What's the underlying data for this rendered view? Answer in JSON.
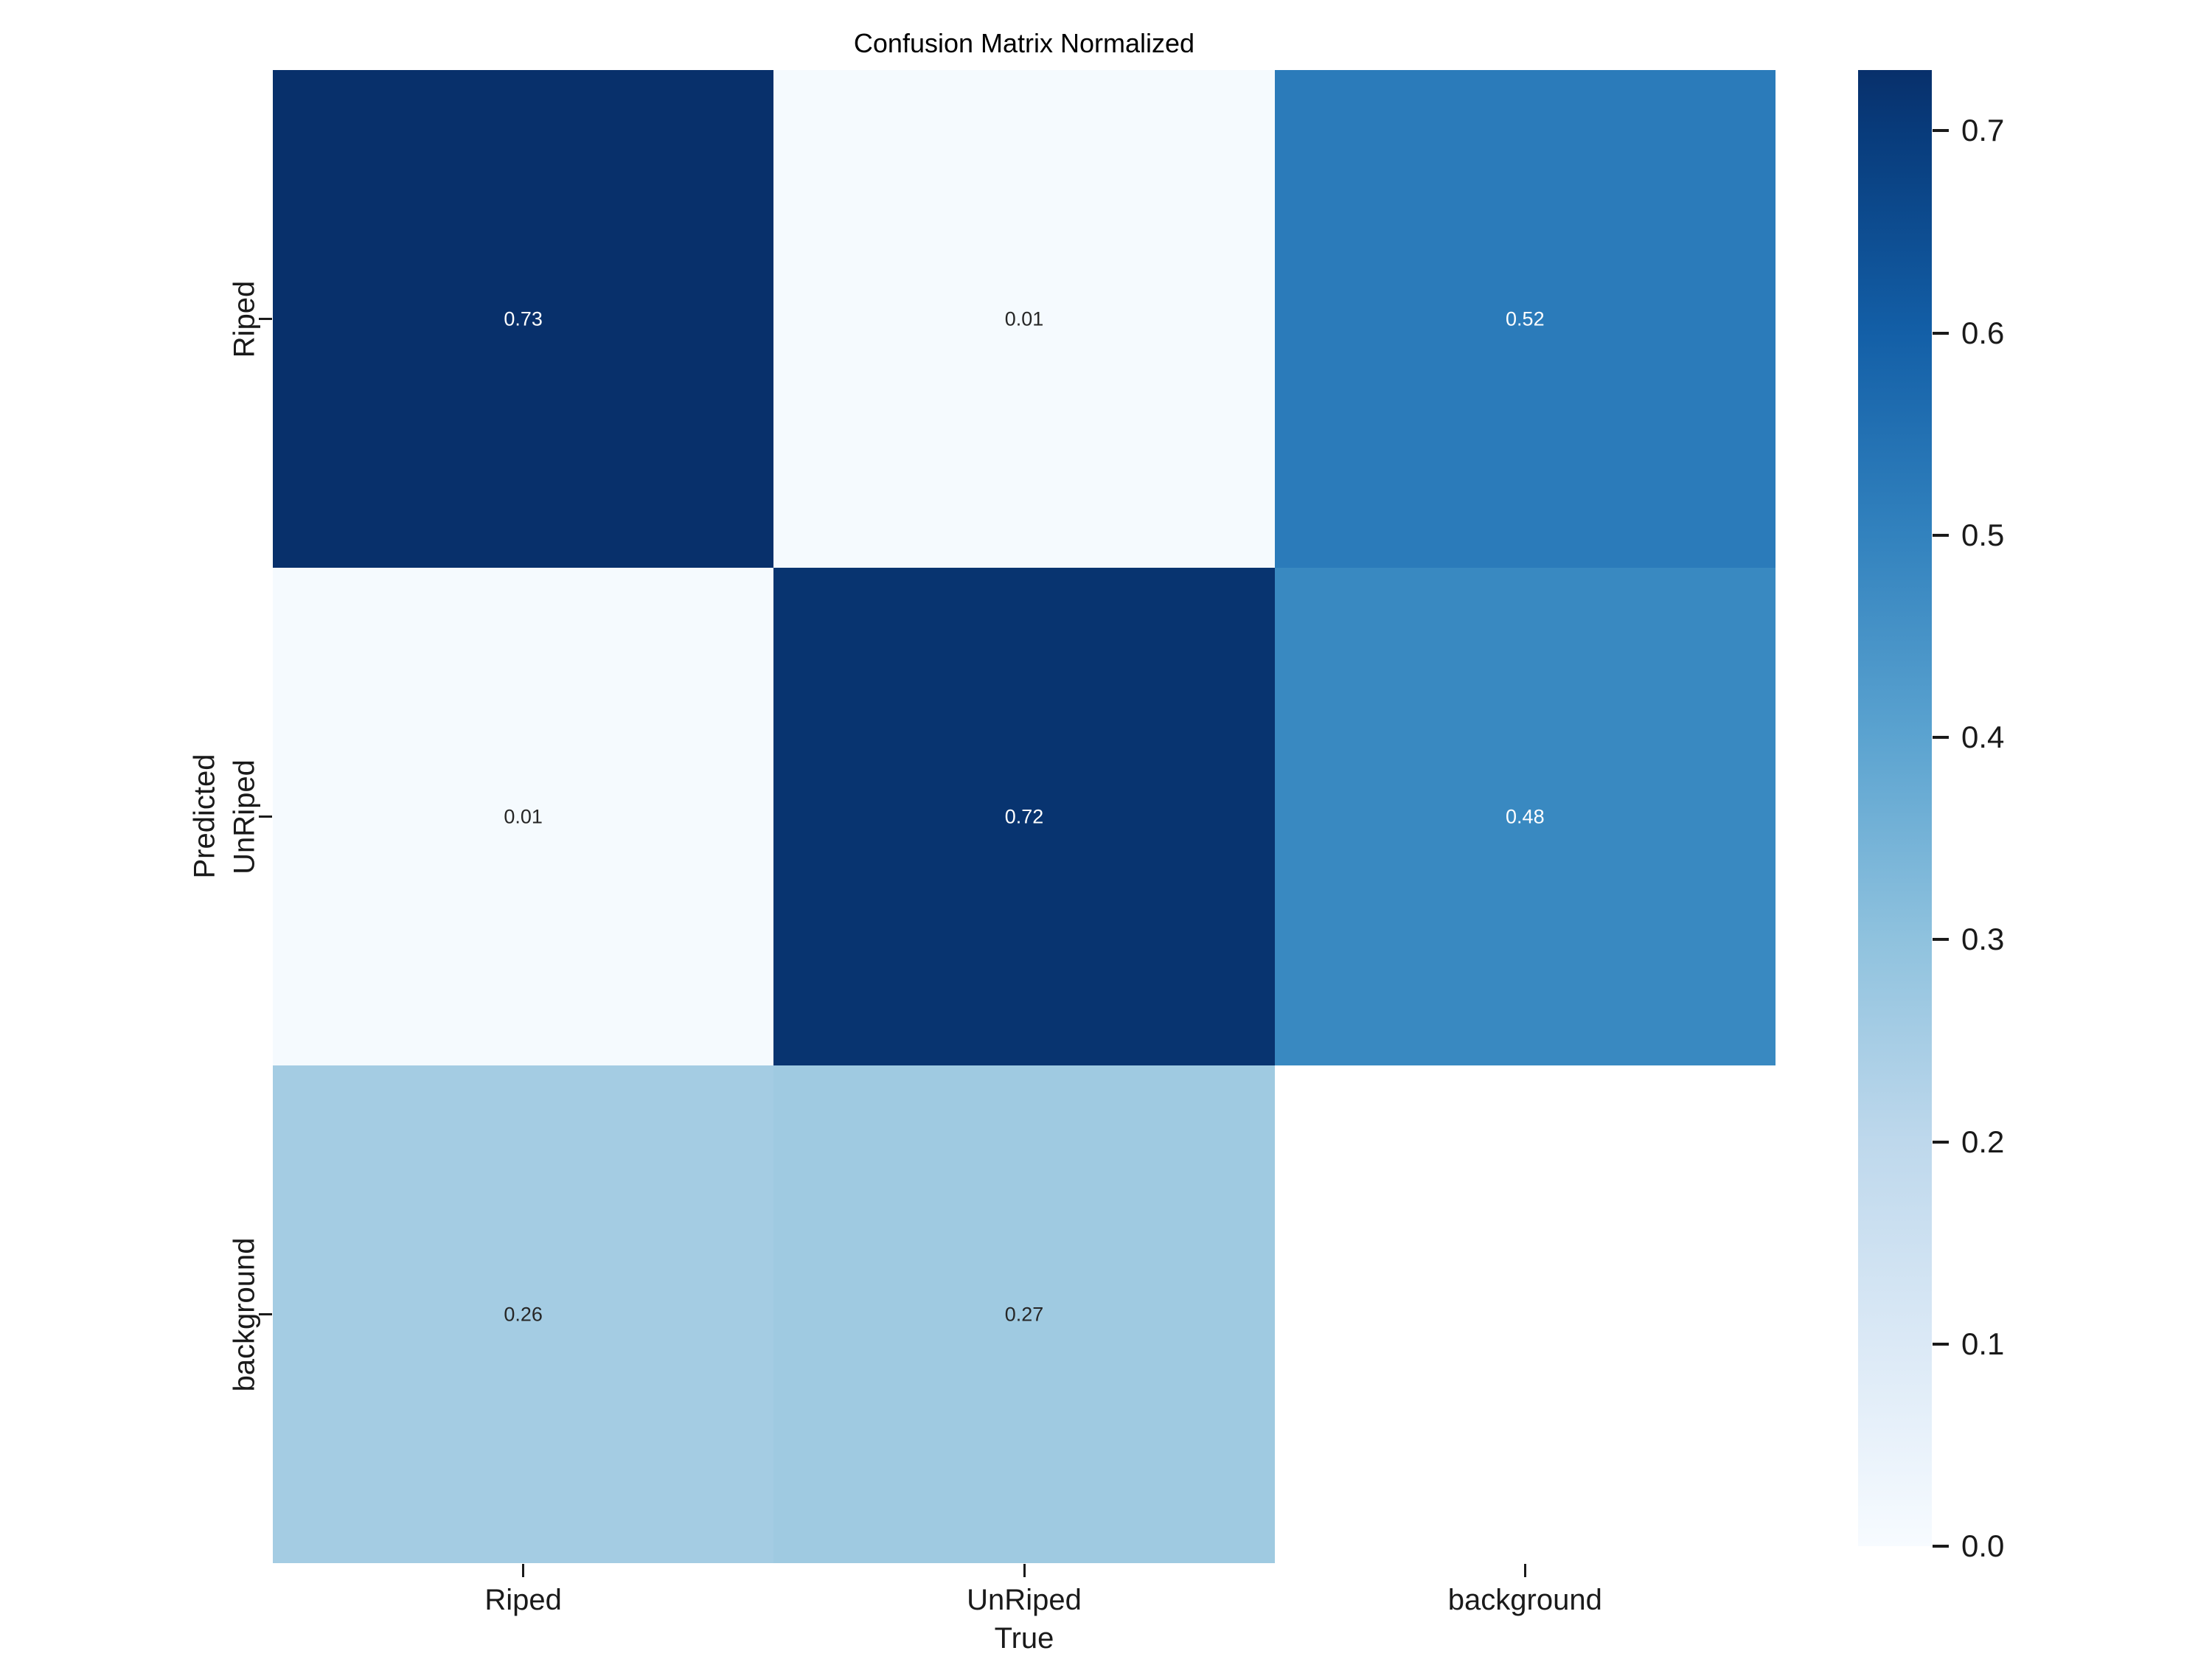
{
  "chart_data": {
    "type": "heatmap",
    "title": "Confusion Matrix Normalized",
    "xlabel": "True",
    "ylabel": "Predicted",
    "x_categories": [
      "Riped",
      "UnRiped",
      "background"
    ],
    "y_categories": [
      "Riped",
      "UnRiped",
      "background"
    ],
    "matrix": [
      [
        0.73,
        0.01,
        0.52
      ],
      [
        0.01,
        0.72,
        0.48
      ],
      [
        0.26,
        0.27,
        null
      ]
    ],
    "cells": [
      [
        {
          "label": "0.73",
          "color": "#08306b",
          "text_color": "#ffffff"
        },
        {
          "label": "0.01",
          "color": "#f5fafe",
          "text_color": "#262626"
        },
        {
          "label": "0.52",
          "color": "#2b7bba",
          "text_color": "#ffffff"
        }
      ],
      [
        {
          "label": "0.01",
          "color": "#f5fafe",
          "text_color": "#262626"
        },
        {
          "label": "0.72",
          "color": "#083470",
          "text_color": "#ffffff"
        },
        {
          "label": "0.48",
          "color": "#3989c1",
          "text_color": "#ffffff"
        }
      ],
      [
        {
          "label": "0.26",
          "color": "#a4cce3",
          "text_color": "#262626"
        },
        {
          "label": "0.27",
          "color": "#9fcae1",
          "text_color": "#262626"
        },
        {
          "label": "",
          "color": "#ffffff",
          "text_color": "#262626"
        }
      ]
    ],
    "colormap": "Blues",
    "vmin": 0.0,
    "vmax": 0.73,
    "grid": false,
    "colorbar": {
      "position": "right",
      "ticks": [
        {
          "label": "0.7",
          "value": 0.7
        },
        {
          "label": "0.6",
          "value": 0.6
        },
        {
          "label": "0.5",
          "value": 0.5
        },
        {
          "label": "0.4",
          "value": 0.4
        },
        {
          "label": "0.3",
          "value": 0.3
        },
        {
          "label": "0.2",
          "value": 0.2
        },
        {
          "label": "0.1",
          "value": 0.1
        },
        {
          "label": "0.0",
          "value": 0.0
        }
      ],
      "gradient_stops": [
        {
          "pos": 0.0,
          "color": "#08306b"
        },
        {
          "pos": 4.1,
          "color": "#083b7b"
        },
        {
          "pos": 17.8,
          "color": "#135fa7"
        },
        {
          "pos": 31.5,
          "color": "#3282be"
        },
        {
          "pos": 45.2,
          "color": "#5ba3d0"
        },
        {
          "pos": 58.9,
          "color": "#8fc2de"
        },
        {
          "pos": 72.6,
          "color": "#bed8ec"
        },
        {
          "pos": 86.3,
          "color": "#dbe9f6"
        },
        {
          "pos": 100.0,
          "color": "#f7fbff"
        }
      ]
    }
  }
}
